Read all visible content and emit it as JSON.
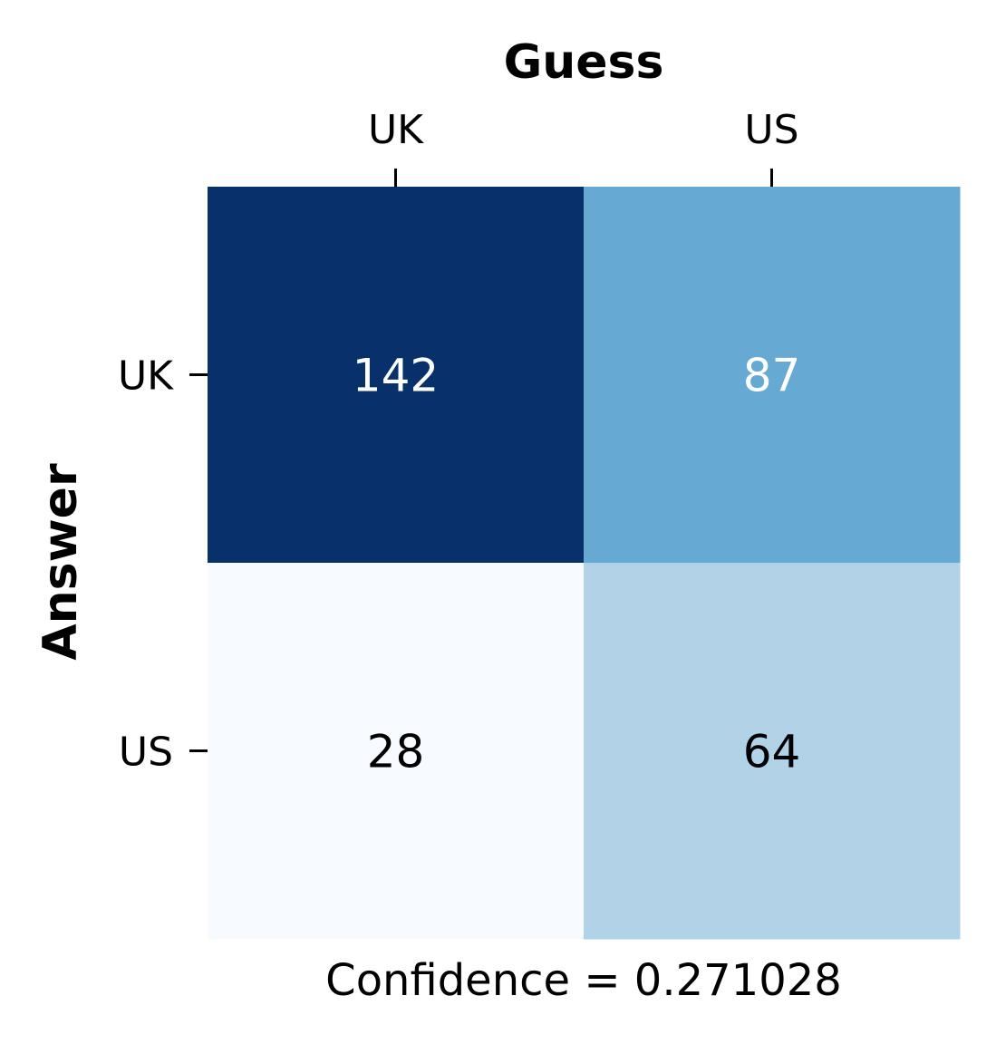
{
  "chart_data": {
    "type": "heatmap",
    "title": "",
    "xlabel": "Guess",
    "ylabel": "Answer",
    "x_categories": [
      "UK",
      "US"
    ],
    "y_categories": [
      "UK",
      "US"
    ],
    "values": [
      [
        142,
        87
      ],
      [
        28,
        64
      ]
    ],
    "colormap": "Blues",
    "colorbar": false,
    "x_axis_position": "top",
    "cell_colors": [
      [
        "#08306b",
        "#66aad4"
      ],
      [
        "#f7fbff",
        "#b2d2e8"
      ]
    ],
    "label_colors": [
      [
        "#ffffff",
        "#ffffff"
      ],
      [
        "#000000",
        "#000000"
      ]
    ],
    "caption": "Confidence = 0.271028"
  }
}
